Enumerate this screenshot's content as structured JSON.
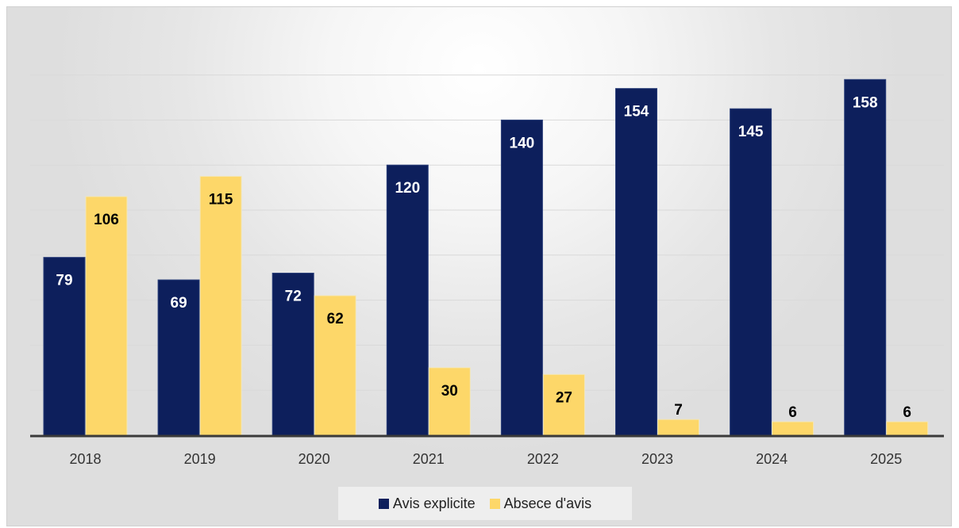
{
  "chart_data": {
    "type": "bar",
    "title": "",
    "xlabel": "",
    "ylabel": "",
    "ylim": [
      0,
      170
    ],
    "grid": true,
    "legend_position": "bottom",
    "categories": [
      "2018",
      "2019",
      "2020",
      "2021",
      "2022",
      "2023",
      "2024",
      "2025"
    ],
    "series": [
      {
        "name": "Avis explicite",
        "color": "#0d1f5c",
        "label_color": "#ffffff",
        "values": [
          79,
          69,
          72,
          120,
          140,
          154,
          145,
          158
        ]
      },
      {
        "name": "Absece d'avis",
        "color": "#fdd769",
        "label_color": "#000000",
        "values": [
          106,
          115,
          62,
          30,
          27,
          7,
          6,
          6
        ]
      }
    ]
  }
}
